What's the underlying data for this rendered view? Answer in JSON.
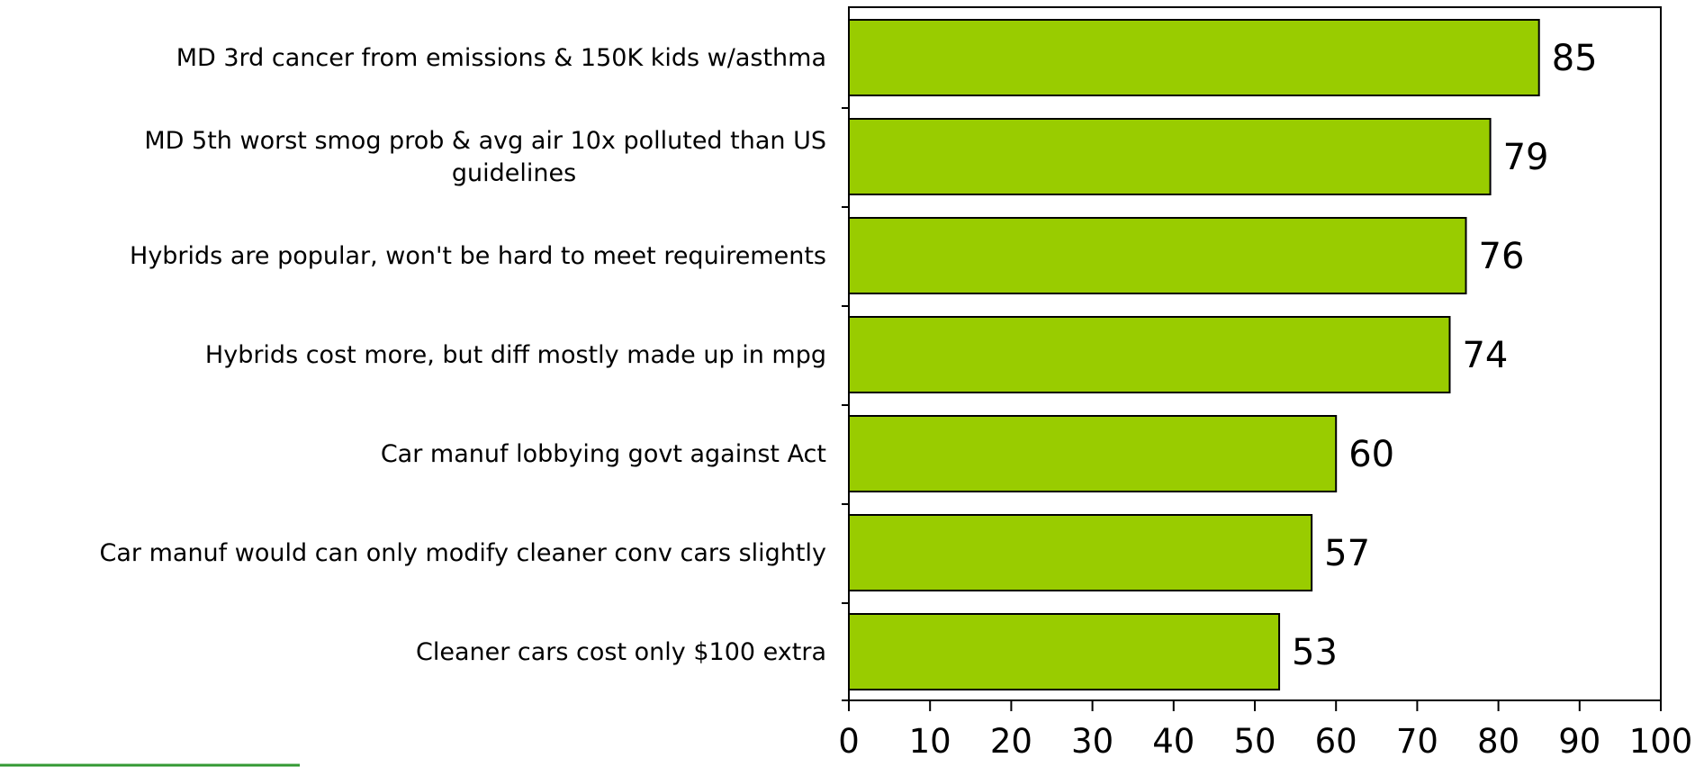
{
  "chart_data": {
    "type": "bar",
    "orientation": "horizontal",
    "title": "",
    "xlabel": "",
    "ylabel": "",
    "categories": [
      "MD 3rd cancer from emissions & 150K kids w/asthma",
      "MD 5th worst smog prob & avg air 10x polluted than US guidelines",
      "Hybrids are popular, won't be hard to meet requirements",
      "Hybrids cost more, but diff mostly made up in mpg",
      "Car manuf lobbying govt against Act",
      "Car manuf would can only modify cleaner conv cars slightly",
      "Cleaner cars cost only $100 extra"
    ],
    "category_lines": [
      [
        "MD 3rd cancer from emissions & 150K kids w/asthma"
      ],
      [
        "MD 5th worst smog prob & avg air 10x polluted than US",
        "guidelines"
      ],
      [
        "Hybrids are popular, won't be hard to meet requirements"
      ],
      [
        "Hybrids cost more, but diff mostly made up in mpg"
      ],
      [
        "Car manuf lobbying govt against Act"
      ],
      [
        "Car manuf would can only modify cleaner conv cars slightly"
      ],
      [
        "Cleaner cars cost only $100 extra"
      ]
    ],
    "values": [
      85,
      79,
      76,
      74,
      60,
      57,
      53
    ],
    "value_labels": [
      "85",
      "79",
      "76",
      "74",
      "60",
      "57",
      "53"
    ],
    "xlim": [
      0,
      100
    ],
    "xticks": [
      0,
      10,
      20,
      30,
      40,
      50,
      60,
      70,
      80,
      90,
      100
    ],
    "xtick_labels": [
      "0",
      "10",
      "20",
      "30",
      "40",
      "50",
      "60",
      "70",
      "80",
      "90",
      "100"
    ],
    "grid": false,
    "legend": "none",
    "colors": {
      "bar_fill": "#99cc00",
      "bar_stroke": "#000000",
      "axis": "#000000",
      "accent_line": "#339933"
    }
  }
}
